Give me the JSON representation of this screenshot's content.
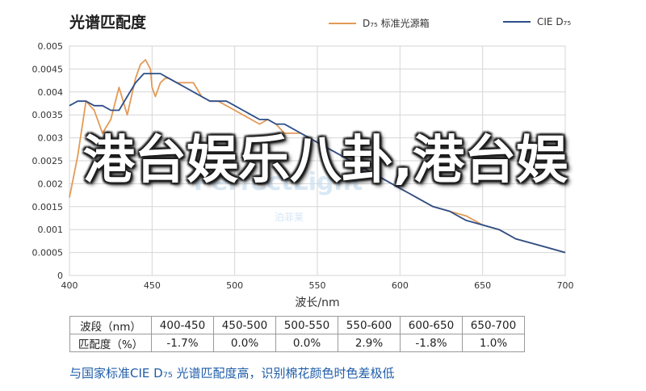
{
  "chart_data": {
    "type": "line",
    "title": "光谱匹配度",
    "xlabel": "波长/nm",
    "ylabel": "",
    "xlim": [
      400,
      700
    ],
    "ylim": [
      0,
      0.005
    ],
    "xticks": [
      "400",
      "450",
      "500",
      "550",
      "600",
      "650",
      "700"
    ],
    "yticks": [
      "0",
      "0.0005",
      "0.001",
      "0.0015",
      "0.002",
      "0.0025",
      "0.003",
      "0.0035",
      "0.004",
      "0.0045",
      "0.005"
    ],
    "grid": true,
    "legend": "top-right",
    "series": [
      {
        "name": "D₇₅ 标准光源箱",
        "color": "#e39a55",
        "x": [
          400,
          405,
          410,
          415,
          420,
          425,
          430,
          435,
          440,
          443,
          446,
          449,
          450,
          452,
          455,
          458,
          460,
          465,
          470,
          475,
          480,
          485,
          490,
          495,
          500,
          505,
          510,
          515,
          520,
          525,
          530,
          535,
          540,
          545,
          550,
          555,
          560,
          570,
          580,
          590,
          600,
          610,
          620,
          630,
          640,
          650,
          660,
          670,
          680,
          690,
          700
        ],
        "y": [
          0.0017,
          0.0026,
          0.0038,
          0.0036,
          0.0031,
          0.0034,
          0.0041,
          0.0035,
          0.0043,
          0.0046,
          0.0047,
          0.0045,
          0.0041,
          0.0039,
          0.0042,
          0.0043,
          0.0043,
          0.0042,
          0.0042,
          0.0042,
          0.0039,
          0.0038,
          0.0038,
          0.0037,
          0.0036,
          0.0035,
          0.0034,
          0.0033,
          0.0034,
          0.0033,
          0.0031,
          0.0031,
          0.0031,
          0.003,
          0.0029,
          0.0028,
          0.0027,
          0.0025,
          0.0023,
          0.0021,
          0.0019,
          0.0017,
          0.0015,
          0.0014,
          0.0013,
          0.0011,
          0.001,
          0.0008,
          0.0007,
          0.0006,
          0.0005
        ]
      },
      {
        "name": "CIE D₇₅",
        "color": "#2d4f8a",
        "x": [
          400,
          405,
          410,
          415,
          420,
          425,
          430,
          435,
          440,
          445,
          450,
          455,
          460,
          465,
          470,
          475,
          480,
          485,
          490,
          495,
          500,
          505,
          510,
          515,
          520,
          525,
          530,
          535,
          540,
          545,
          550,
          555,
          560,
          570,
          580,
          590,
          600,
          610,
          620,
          630,
          640,
          650,
          660,
          670,
          680,
          690,
          700
        ],
        "y": [
          0.0037,
          0.0038,
          0.0038,
          0.0037,
          0.0037,
          0.0036,
          0.0036,
          0.0039,
          0.0042,
          0.0044,
          0.0044,
          0.0044,
          0.0043,
          0.0042,
          0.0041,
          0.004,
          0.0039,
          0.0038,
          0.0038,
          0.0038,
          0.0037,
          0.0036,
          0.0035,
          0.0034,
          0.0034,
          0.0033,
          0.0033,
          0.0032,
          0.0031,
          0.003,
          0.0029,
          0.0028,
          0.0027,
          0.0025,
          0.0023,
          0.0021,
          0.0019,
          0.0017,
          0.0015,
          0.0014,
          0.0012,
          0.0011,
          0.001,
          0.0008,
          0.0007,
          0.0006,
          0.0005
        ]
      }
    ]
  },
  "legend": {
    "d75_box": "D₇₅ 标准光源箱",
    "cie_d75": "CIE D₇₅",
    "d75_box_color": "#e39a55",
    "cie_d75_color": "#2d4f8a"
  },
  "table": {
    "header": [
      "波段（nm）",
      "400-450",
      "450-500",
      "500-550",
      "550-600",
      "600-650",
      "650-700"
    ],
    "row": [
      "匹配度（%）",
      "-1.7%",
      "0.0%",
      "0.0%",
      "2.9%",
      "-1.8%",
      "1.0%"
    ]
  },
  "caption": "与国家标准CIE D₇₅ 光谱匹配度高，识别棉花颜色时色差极低",
  "overlay_text": "港台娱乐八卦,港台娱",
  "watermark": "PerfectLight",
  "watermark_sub": "泊菲莱"
}
